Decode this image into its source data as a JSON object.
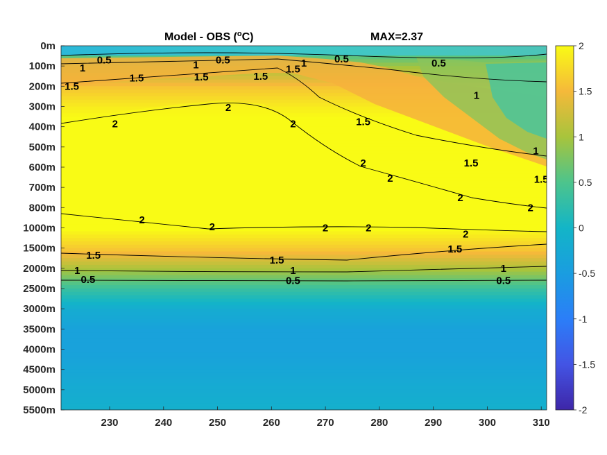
{
  "chart_data": {
    "type": "heatmap",
    "title": "Model - OBS (°C)",
    "title_main": "Model - OBS (",
    "title_sup": "o",
    "title_end": "C)",
    "max_label": "MAX=2.37",
    "xlabel": "",
    "ylabel": "",
    "x_ticks": [
      230,
      240,
      250,
      260,
      270,
      280,
      290,
      300,
      310
    ],
    "xlim": [
      221,
      311
    ],
    "y_tick_labels": [
      "0m",
      "100m",
      "200m",
      "300m",
      "400m",
      "500m",
      "600m",
      "700m",
      "800m",
      "1000m",
      "1500m",
      "2000m",
      "2500m",
      "3000m",
      "3500m",
      "4000m",
      "4500m",
      "5000m",
      "5500m"
    ],
    "colorbar": {
      "min": -2,
      "max": 2,
      "ticks": [
        -2,
        -1.5,
        -1,
        -0.5,
        0,
        0.5,
        1,
        1.5,
        2
      ],
      "tick_labels": [
        "-2",
        "-1.5",
        "-1",
        "-0.5",
        "0",
        "0.5",
        "1",
        "1.5",
        "2"
      ],
      "colormap": "parula"
    },
    "depth_profile": [
      {
        "depth": "0m",
        "value": 0.2
      },
      {
        "depth": "100m",
        "value": 1.0
      },
      {
        "depth": "200m",
        "value": 1.6
      },
      {
        "depth": "300m",
        "value": 1.9
      },
      {
        "depth": "400m",
        "value": 2.1
      },
      {
        "depth": "500m",
        "value": 2.2
      },
      {
        "depth": "600m",
        "value": 2.2
      },
      {
        "depth": "700m",
        "value": 2.2
      },
      {
        "depth": "800m",
        "value": 2.2
      },
      {
        "depth": "1000m",
        "value": 2.0
      },
      {
        "depth": "1500m",
        "value": 1.6
      },
      {
        "depth": "2000m",
        "value": 1.0
      },
      {
        "depth": "2500m",
        "value": 0.3
      },
      {
        "depth": "3000m",
        "value": -0.2
      },
      {
        "depth": "3500m",
        "value": -0.4
      },
      {
        "depth": "4000m",
        "value": -0.4
      },
      {
        "depth": "4500m",
        "value": -0.3
      },
      {
        "depth": "5000m",
        "value": -0.2
      },
      {
        "depth": "5500m",
        "value": -0.1
      }
    ],
    "contour_labels": [
      {
        "text": "0.5",
        "x": 229,
        "depth_index": 0.7
      },
      {
        "text": "0.5",
        "x": 251,
        "depth_index": 0.7
      },
      {
        "text": "0.5",
        "x": 273,
        "depth_index": 0.65
      },
      {
        "text": "0.5",
        "x": 291,
        "depth_index": 0.85
      },
      {
        "text": "1",
        "x": 225,
        "depth_index": 1.1
      },
      {
        "text": "1",
        "x": 246,
        "depth_index": 0.95
      },
      {
        "text": "1",
        "x": 266,
        "depth_index": 0.85
      },
      {
        "text": "1",
        "x": 298,
        "depth_index": 2.45
      },
      {
        "text": "1",
        "x": 309,
        "depth_index": 5.2
      },
      {
        "text": "1.5",
        "x": 223,
        "depth_index": 2.0
      },
      {
        "text": "1.5",
        "x": 235,
        "depth_index": 1.6
      },
      {
        "text": "1.5",
        "x": 247,
        "depth_index": 1.55
      },
      {
        "text": "1.5",
        "x": 258,
        "depth_index": 1.5
      },
      {
        "text": "1.5",
        "x": 264,
        "depth_index": 1.15
      },
      {
        "text": "1.5",
        "x": 277,
        "depth_index": 3.75
      },
      {
        "text": "1.5",
        "x": 297,
        "depth_index": 5.8
      },
      {
        "text": "1.5",
        "x": 310,
        "depth_index": 6.6
      },
      {
        "text": "2",
        "x": 231,
        "depth_index": 3.85
      },
      {
        "text": "2",
        "x": 252,
        "depth_index": 3.05
      },
      {
        "text": "2",
        "x": 264,
        "depth_index": 3.85
      },
      {
        "text": "2",
        "x": 277,
        "depth_index": 5.8
      },
      {
        "text": "2",
        "x": 282,
        "depth_index": 6.55
      },
      {
        "text": "2",
        "x": 295,
        "depth_index": 7.5
      },
      {
        "text": "2",
        "x": 308,
        "depth_index": 8.0
      },
      {
        "text": "2",
        "x": 236,
        "depth_index": 8.6
      },
      {
        "text": "2",
        "x": 249,
        "depth_index": 8.95
      },
      {
        "text": "2",
        "x": 270,
        "depth_index": 9.0
      },
      {
        "text": "2",
        "x": 278,
        "depth_index": 9.0
      },
      {
        "text": "2",
        "x": 296,
        "depth_index": 9.3
      },
      {
        "text": "1.5",
        "x": 227,
        "depth_index": 10.35
      },
      {
        "text": "1.5",
        "x": 261,
        "depth_index": 10.6
      },
      {
        "text": "1.5",
        "x": 294,
        "depth_index": 10.05
      },
      {
        "text": "1",
        "x": 224,
        "depth_index": 11.1
      },
      {
        "text": "1",
        "x": 264,
        "depth_index": 11.1
      },
      {
        "text": "1",
        "x": 303,
        "depth_index": 11.0
      },
      {
        "text": "0.5",
        "x": 226,
        "depth_index": 11.55
      },
      {
        "text": "0.5",
        "x": 264,
        "depth_index": 11.6
      },
      {
        "text": "0.5",
        "x": 303,
        "depth_index": 11.6
      }
    ]
  }
}
